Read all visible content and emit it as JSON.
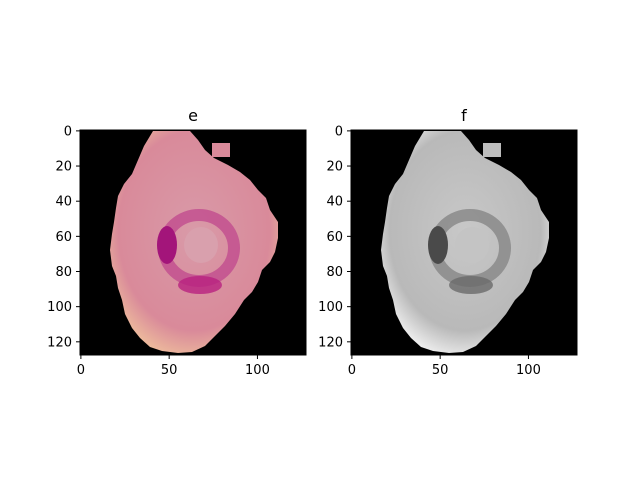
{
  "chart_data": [
    {
      "type": "image",
      "title": "e",
      "colormap": "color",
      "xlim": [
        0,
        127
      ],
      "ylim": [
        127,
        0
      ],
      "xticks": [
        0,
        50,
        100
      ],
      "yticks": [
        0,
        20,
        40,
        60,
        80,
        100,
        120
      ],
      "background_color": "#000000",
      "cell_fill": "#d98a9a",
      "cell_edge": "#f0c0a0",
      "nucleus_color": "#b2177a"
    },
    {
      "type": "image",
      "title": "f",
      "colormap": "gray",
      "xlim": [
        0,
        127
      ],
      "ylim": [
        127,
        0
      ],
      "xticks": [
        0,
        50,
        100
      ],
      "yticks": [
        0,
        20,
        40,
        60,
        80,
        100,
        120
      ],
      "background_color": "#000000",
      "cell_fill": "#bdbdbd",
      "cell_edge": "#f2f2f2",
      "nucleus_color": "#5a5a5a"
    }
  ]
}
